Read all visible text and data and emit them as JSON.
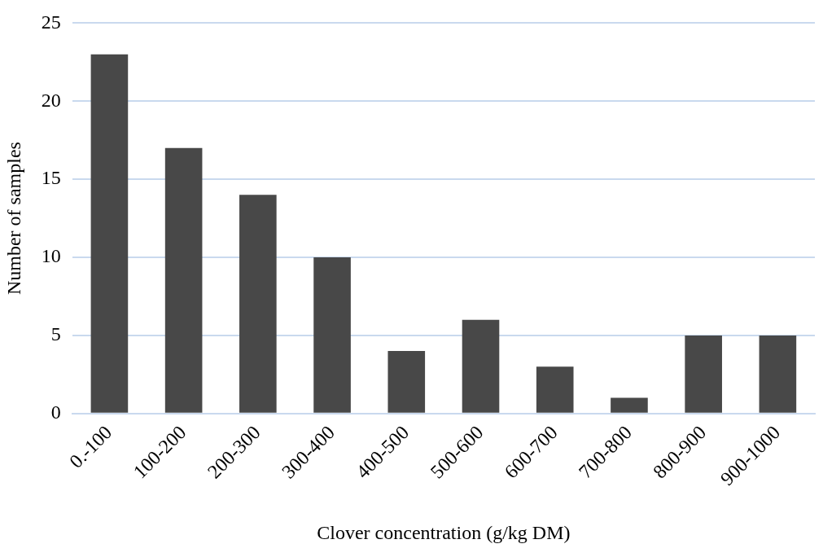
{
  "chart_data": {
    "type": "bar",
    "xlabel": "Clover concentration (g/kg DM)",
    "ylabel": "Number of samples",
    "categories": [
      "0.-100",
      "100-200",
      "200-300",
      "300-400",
      "400-500",
      "500-600",
      "600-700",
      "700-800",
      "800-900",
      "900-1000"
    ],
    "values": [
      23,
      17,
      14,
      10,
      4,
      6,
      3,
      1,
      5,
      5
    ],
    "color": "#484848",
    "ylim": [
      0,
      25
    ],
    "yticks": [
      0,
      5,
      10,
      15,
      20,
      25
    ],
    "grid": "y",
    "legend": false
  }
}
